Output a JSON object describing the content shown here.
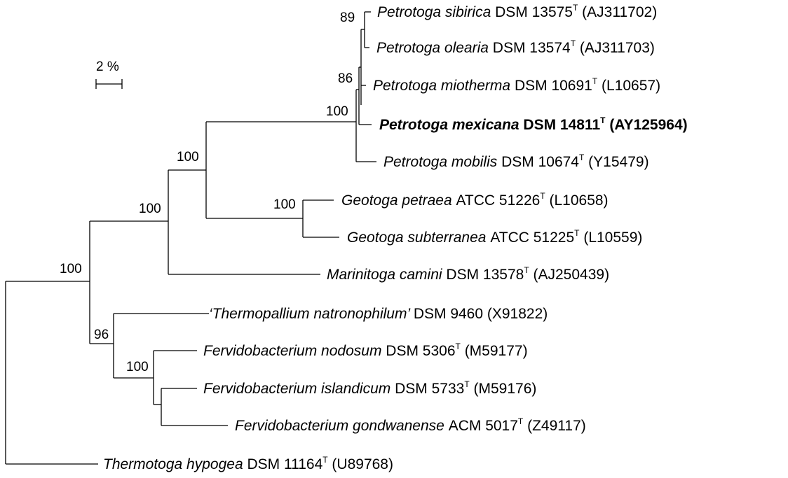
{
  "tree": {
    "scale_bar": {
      "label": "2 %"
    },
    "nodes": {
      "root": {
        "bootstrap": ""
      },
      "n_outgroups": {
        "bootstrap": "100"
      },
      "n_fervido": {
        "bootstrap": "96"
      },
      "n_fervido2": {
        "bootstrap": "100"
      },
      "n_fervido3": {
        "bootstrap": ""
      },
      "n_petro_geo_mari": {
        "bootstrap": "100"
      },
      "n_petro_geo": {
        "bootstrap": "100"
      },
      "n_geotoga": {
        "bootstrap": "100"
      },
      "n_petrotoga": {
        "bootstrap": "100"
      },
      "n_petro_a": {
        "bootstrap": "86"
      },
      "n_petro_b": {
        "bootstrap": ""
      },
      "n_petro_c": {
        "bootstrap": "89"
      }
    },
    "leaves": [
      {
        "id": "p_sibirica",
        "genus_species": "Petrotoga sibirica",
        "strain": "DSM 13575",
        "type_strain": "T",
        "accession": "(AJ311702)",
        "bold": false
      },
      {
        "id": "p_olearia",
        "genus_species": "Petrotoga olearia",
        "strain": "DSM 13574",
        "type_strain": "T",
        "accession": "(AJ311703)",
        "bold": false
      },
      {
        "id": "p_miotherma",
        "genus_species": "Petrotoga miotherma",
        "strain": "DSM 10691",
        "type_strain": "T",
        "accession": "(L10657)",
        "bold": false
      },
      {
        "id": "p_mexicana",
        "genus_species": "Petrotoga mexicana",
        "strain": "DSM 14811",
        "type_strain": "T",
        "accession": "(AY125964)",
        "bold": true
      },
      {
        "id": "p_mobilis",
        "genus_species": "Petrotoga mobilis",
        "strain": "DSM 10674",
        "type_strain": "T",
        "accession": "(Y15479)",
        "bold": false
      },
      {
        "id": "g_petraea",
        "genus_species": "Geotoga petraea",
        "strain": "ATCC 51226",
        "type_strain": "T",
        "accession": "(L10658)",
        "bold": false
      },
      {
        "id": "g_subterranea",
        "genus_species": "Geotoga subterranea",
        "strain": "ATCC 51225",
        "type_strain": "T",
        "accession": "(L10559)",
        "bold": false
      },
      {
        "id": "m_camini",
        "genus_species": "Marinitoga camini",
        "strain": "DSM 13578",
        "type_strain": "T",
        "accession": "(AJ250439)",
        "bold": false
      },
      {
        "id": "t_natronophilum",
        "genus_species": "‘Thermopallium natronophilum’",
        "strain": "DSM 9460",
        "type_strain": "",
        "accession": "(X91822)",
        "bold": false
      },
      {
        "id": "f_nodosum",
        "genus_species": "Fervidobacterium nodosum",
        "strain": "DSM 5306",
        "type_strain": "T",
        "accession": "(M59177)",
        "bold": false
      },
      {
        "id": "f_islandicum",
        "genus_species": "Fervidobacterium islandicum",
        "strain": "DSM 5733",
        "type_strain": "T",
        "accession": "(M59176)",
        "bold": false
      },
      {
        "id": "f_gondwanense",
        "genus_species": "Fervidobacterium gondwanense",
        "strain": "ACM 5017",
        "type_strain": "T",
        "accession": "(Z49117)",
        "bold": false
      },
      {
        "id": "t_hypogea",
        "genus_species": "Thermotoga hypogea",
        "strain": "DSM 11164",
        "type_strain": "T",
        "accession": "(U89768)",
        "bold": false
      }
    ]
  }
}
